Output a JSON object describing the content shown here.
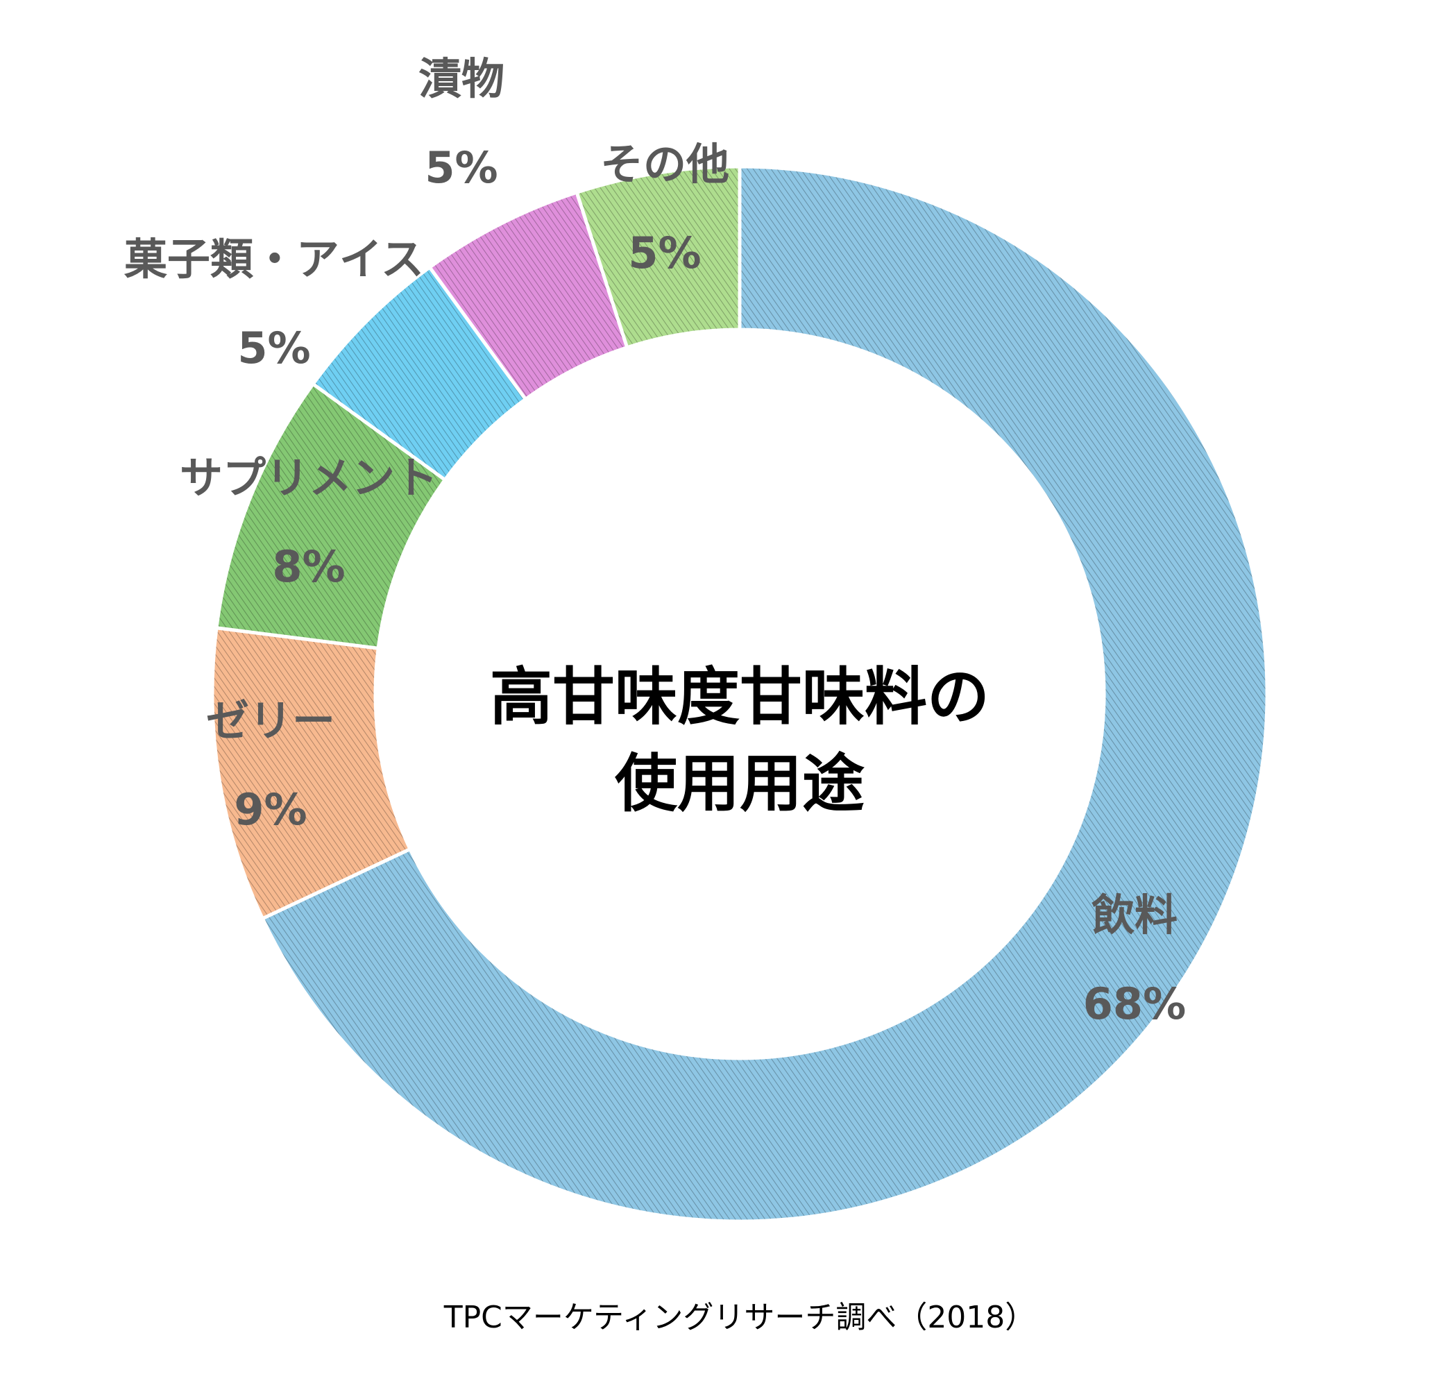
{
  "chart_data": {
    "type": "pie",
    "style": "donut",
    "center_title_lines": [
      "高甘味度甘味料の",
      "使用用途"
    ],
    "source": "TPCマーケティングリサーチ調べ（2018）",
    "slices": [
      {
        "label": "飲料",
        "value": 68,
        "value_label": "68%",
        "color": "#8ec6e4"
      },
      {
        "label": "ゼリー",
        "value": 9,
        "value_label": "9%",
        "color": "#f7b98f"
      },
      {
        "label": "サプリメント",
        "value": 8,
        "value_label": "8%",
        "color": "#84c873"
      },
      {
        "label": "菓子類・アイス",
        "value": 5,
        "value_label": "5%",
        "color": "#6fcff2"
      },
      {
        "label": "漬物",
        "value": 5,
        "value_label": "5%",
        "color": "#df8fdb"
      },
      {
        "label": "その他",
        "value": 5,
        "value_label": "5%",
        "color": "#aedd8e"
      }
    ],
    "slice_order": "clockwise from 12 o'clock",
    "legend": "none"
  }
}
